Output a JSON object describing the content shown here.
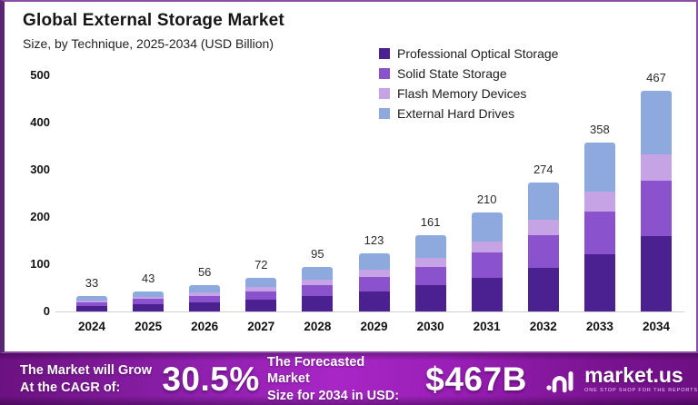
{
  "header": {
    "title": "Global External Storage Market",
    "subtitle": "Size, by Technique, 2025-2034 (USD Billion)"
  },
  "legend": [
    {
      "label": "Professional Optical Storage",
      "color": "#4b2191"
    },
    {
      "label": "Solid State Storage",
      "color": "#8a52cc"
    },
    {
      "label": "Flash Memory Devices",
      "color": "#c6a3e4"
    },
    {
      "label": "External Hard Drives",
      "color": "#8da9dd"
    }
  ],
  "chart_data": {
    "type": "bar",
    "stacked": true,
    "title": "Global External Storage Market",
    "subtitle": "Size, by Technique, 2025-2034 (USD Billion)",
    "unit": "USD Billion",
    "categories": [
      "2024",
      "2025",
      "2026",
      "2027",
      "2028",
      "2029",
      "2030",
      "2031",
      "2032",
      "2033",
      "2034"
    ],
    "totals": [
      33,
      43,
      56,
      72,
      95,
      123,
      161,
      210,
      274,
      358,
      467
    ],
    "series": [
      {
        "name": "Professional Optical Storage",
        "color": "#4b2191",
        "values": [
          11,
          15,
          19,
          24,
          32,
          42,
          55,
          71,
          93,
          122,
          159
        ]
      },
      {
        "name": "Solid State Storage",
        "color": "#8a52cc",
        "values": [
          8,
          11,
          14,
          18,
          24,
          31,
          40,
          53,
          69,
          89,
          117
        ]
      },
      {
        "name": "Flash Memory Devices",
        "color": "#c6a3e4",
        "values": [
          4,
          5,
          7,
          9,
          11,
          15,
          19,
          25,
          33,
          43,
          56
        ]
      },
      {
        "name": "External Hard Drives",
        "color": "#8da9dd",
        "values": [
          10,
          12,
          16,
          21,
          28,
          35,
          47,
          61,
          79,
          104,
          135
        ]
      }
    ],
    "ylim": [
      0,
      500
    ],
    "yticks": [
      0,
      100,
      200,
      300,
      400,
      500
    ],
    "grid": false,
    "legend_position": "top-right"
  },
  "banner": {
    "cagr_label_line1": "The Market will Grow",
    "cagr_label_line2": "At the CAGR of:",
    "cagr_value": "30.5%",
    "forecast_label_line1": "The Forecasted Market",
    "forecast_label_line2": "Size for 2034 in USD:",
    "forecast_value": "$467B",
    "logo_text": "market.us",
    "logo_tagline": "ONE STOP SHOP FOR THE REPORTS"
  },
  "colors": {
    "card_border": "#8a4fa3",
    "card_border_left": "#5a2575",
    "banner_center": "#a826c6",
    "banner_edge": "#6b1180",
    "baseline": "#d0d0d0"
  }
}
